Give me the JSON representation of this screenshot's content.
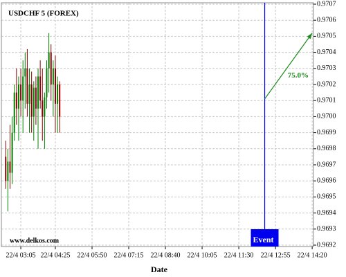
{
  "chart_data": {
    "type": "candlestick",
    "title": "USDCHF 5 (FOREX)",
    "watermark": "www.delkos.com",
    "x_label": "Date",
    "up_color": "#008000",
    "down_color": "#8b0000",
    "grid": true,
    "xlim": [
      140,
      863
    ],
    "xticks": [
      {
        "value": 185,
        "label": "22/4 03:05"
      },
      {
        "value": 265,
        "label": "22/4 04:25"
      },
      {
        "value": 350,
        "label": "22/4 05:50"
      },
      {
        "value": 435,
        "label": "22/4 07:15"
      },
      {
        "value": 520,
        "label": "22/4 08:40"
      },
      {
        "value": 605,
        "label": "22/4 10:05"
      },
      {
        "value": 690,
        "label": "22/4 11:30"
      },
      {
        "value": 775,
        "label": "22/4 12:55"
      },
      {
        "value": 860,
        "label": "22/4 14:20"
      }
    ],
    "ylim": [
      0.9692,
      0.9707
    ],
    "yticks": [
      0.9692,
      0.9693,
      0.9694,
      0.9695,
      0.9696,
      0.9697,
      0.9698,
      0.9699,
      {
        "value": 0.97,
        "label": "0.9700"
      },
      0.9701,
      0.9702,
      0.9703,
      0.9704,
      0.9705,
      0.9706,
      0.9707
    ],
    "x": [
      150,
      155,
      160,
      165,
      170,
      175,
      180,
      185,
      190,
      195,
      200,
      205,
      210,
      215,
      220,
      225,
      230,
      235,
      240,
      245,
      250,
      255,
      260,
      265,
      270,
      275
    ],
    "open": [
      0.96975,
      0.9696,
      0.96972,
      0.96965,
      0.9699,
      0.97015,
      0.97005,
      0.9702,
      0.9701,
      0.97025,
      0.9703,
      0.97008,
      0.9702,
      0.97,
      0.97018,
      0.97005,
      0.97025,
      0.9701,
      0.97,
      0.97012,
      0.9703,
      0.9704,
      0.9702,
      0.9703,
      0.97008,
      0.9702
    ],
    "high": [
      0.96985,
      0.9698,
      0.96995,
      0.97,
      0.9702,
      0.9703,
      0.97025,
      0.9703,
      0.97035,
      0.9704,
      0.97042,
      0.9703,
      0.97028,
      0.97022,
      0.97025,
      0.9703,
      0.97035,
      0.9703,
      0.97015,
      0.97035,
      0.97052,
      0.97045,
      0.97035,
      0.97038,
      0.97025,
      0.97022
    ],
    "low": [
      0.96955,
      0.96941,
      0.96955,
      0.96958,
      0.96985,
      0.96995,
      0.96985,
      0.97,
      0.9699,
      0.97005,
      0.97,
      0.9699,
      0.9699,
      0.96985,
      0.96995,
      0.9698,
      0.97005,
      0.96985,
      0.9698,
      0.97005,
      0.97015,
      0.9701,
      0.97,
      0.9699,
      0.9699,
      0.9699
    ],
    "close": [
      0.9696,
      0.96972,
      0.96965,
      0.9699,
      0.97015,
      0.97005,
      0.9702,
      0.9701,
      0.97025,
      0.9703,
      0.97008,
      0.9702,
      0.97,
      0.97018,
      0.97005,
      0.97025,
      0.9701,
      0.97,
      0.97012,
      0.9703,
      0.9704,
      0.9702,
      0.9703,
      0.97008,
      0.9702,
      0.97
    ],
    "event": {
      "label": "Event",
      "x": 750,
      "color": "#0000ee"
    },
    "arrow": {
      "x": [
        750,
        860
      ],
      "y": [
        0.97011,
        0.97052
      ],
      "label": "75.0%",
      "color": "#1a8a1a"
    }
  }
}
